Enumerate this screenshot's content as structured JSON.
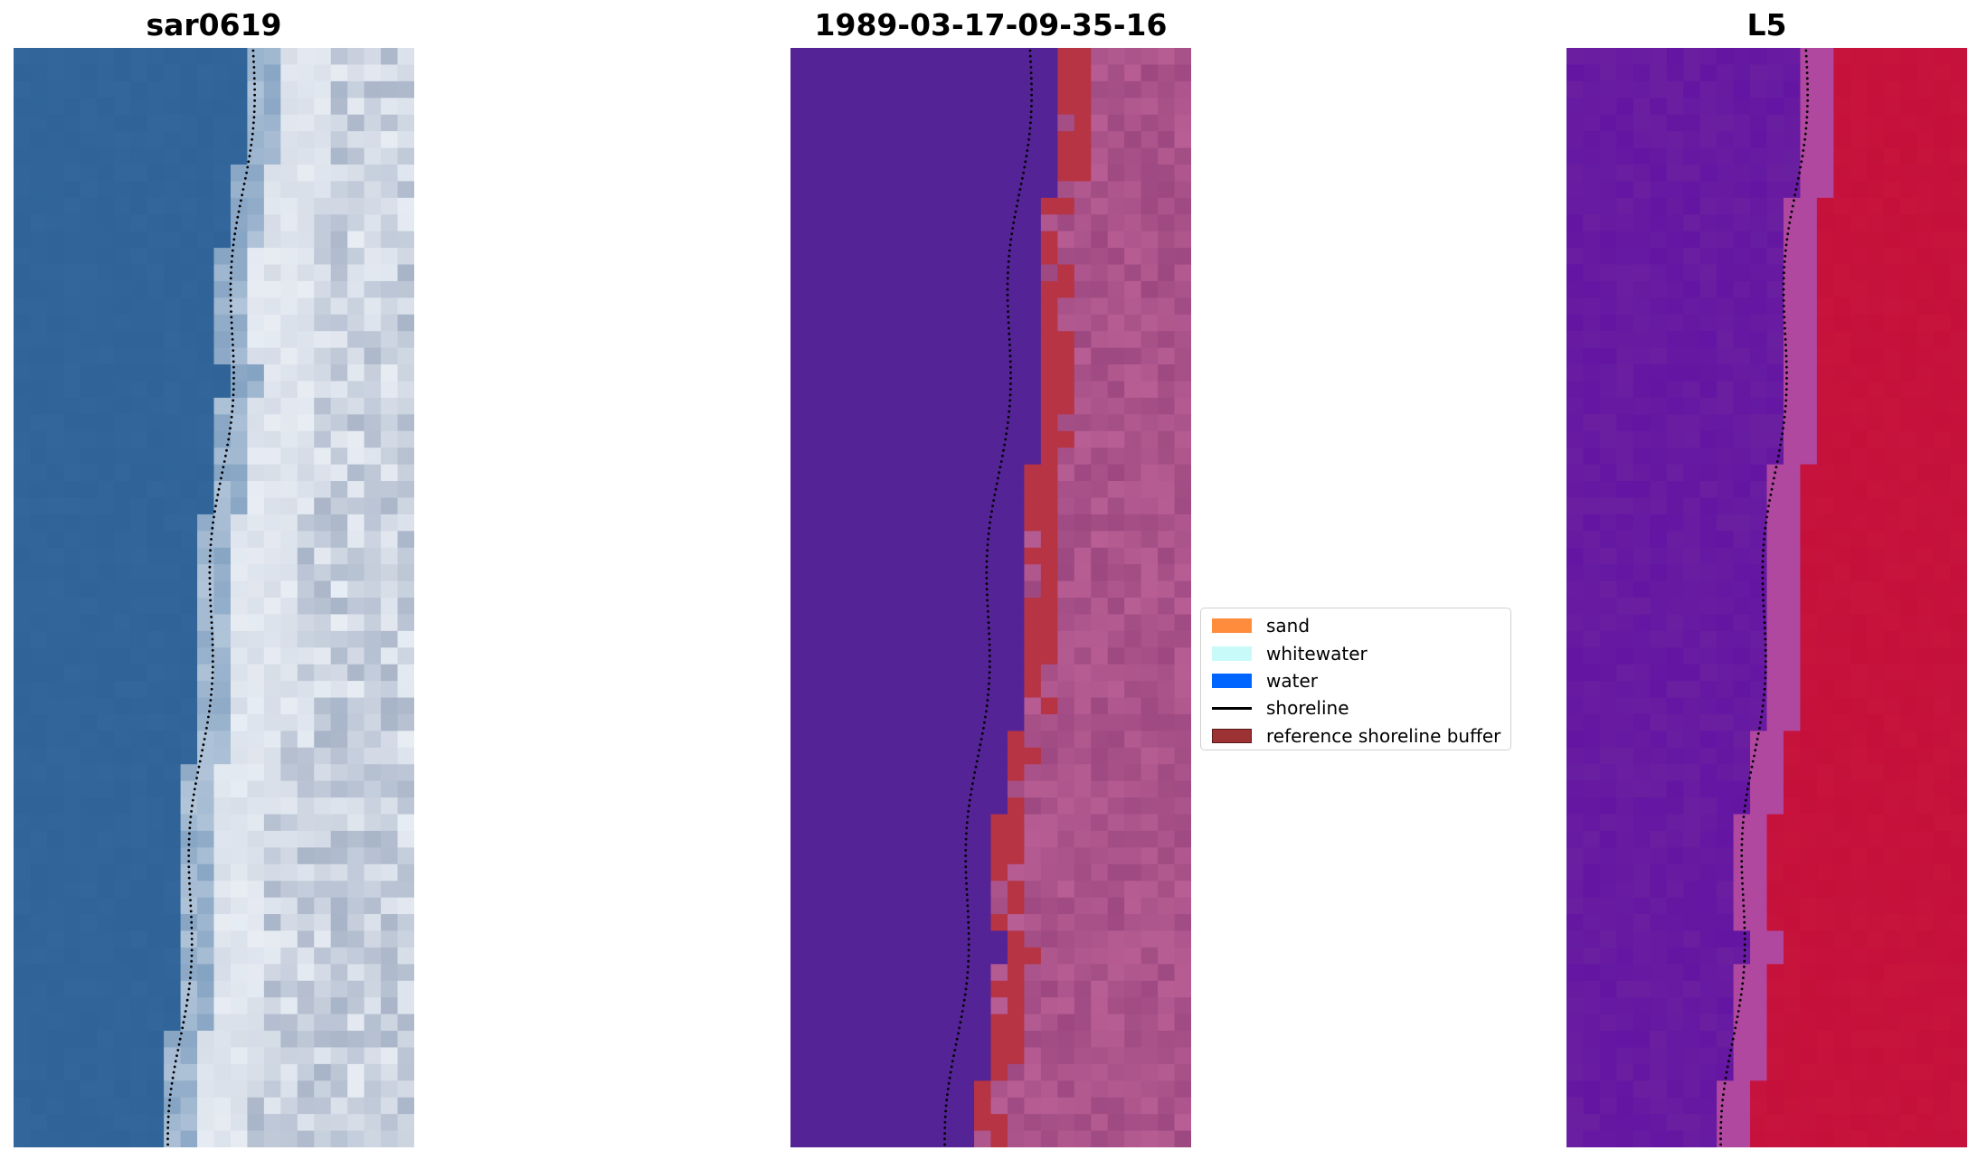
{
  "panels": [
    {
      "title": "sar0619"
    },
    {
      "title": "1989-03-17-09-35-16"
    },
    {
      "title": "L5"
    }
  ],
  "legend": {
    "items": [
      {
        "label": "sand",
        "color": "#ff8c3c",
        "kind": "patch"
      },
      {
        "label": "whitewater",
        "color": "#c8fafa",
        "kind": "patch"
      },
      {
        "label": "water",
        "color": "#0064ff",
        "kind": "patch"
      },
      {
        "label": "shoreline",
        "color": "#000000",
        "kind": "line"
      },
      {
        "label": "reference shoreline buffer",
        "color": "#9c3234",
        "kind": "patch",
        "edge": "#5a1a1a"
      }
    ]
  },
  "colors": {
    "rgb_water": "#33669a",
    "rgb_surf": "#e8edf4",
    "class_water": "#542396",
    "class_land": "#b85e94",
    "class_buffer": "#b63444",
    "mndwi_water": "#6b1fa0",
    "mndwi_land": "#c4103a"
  }
}
